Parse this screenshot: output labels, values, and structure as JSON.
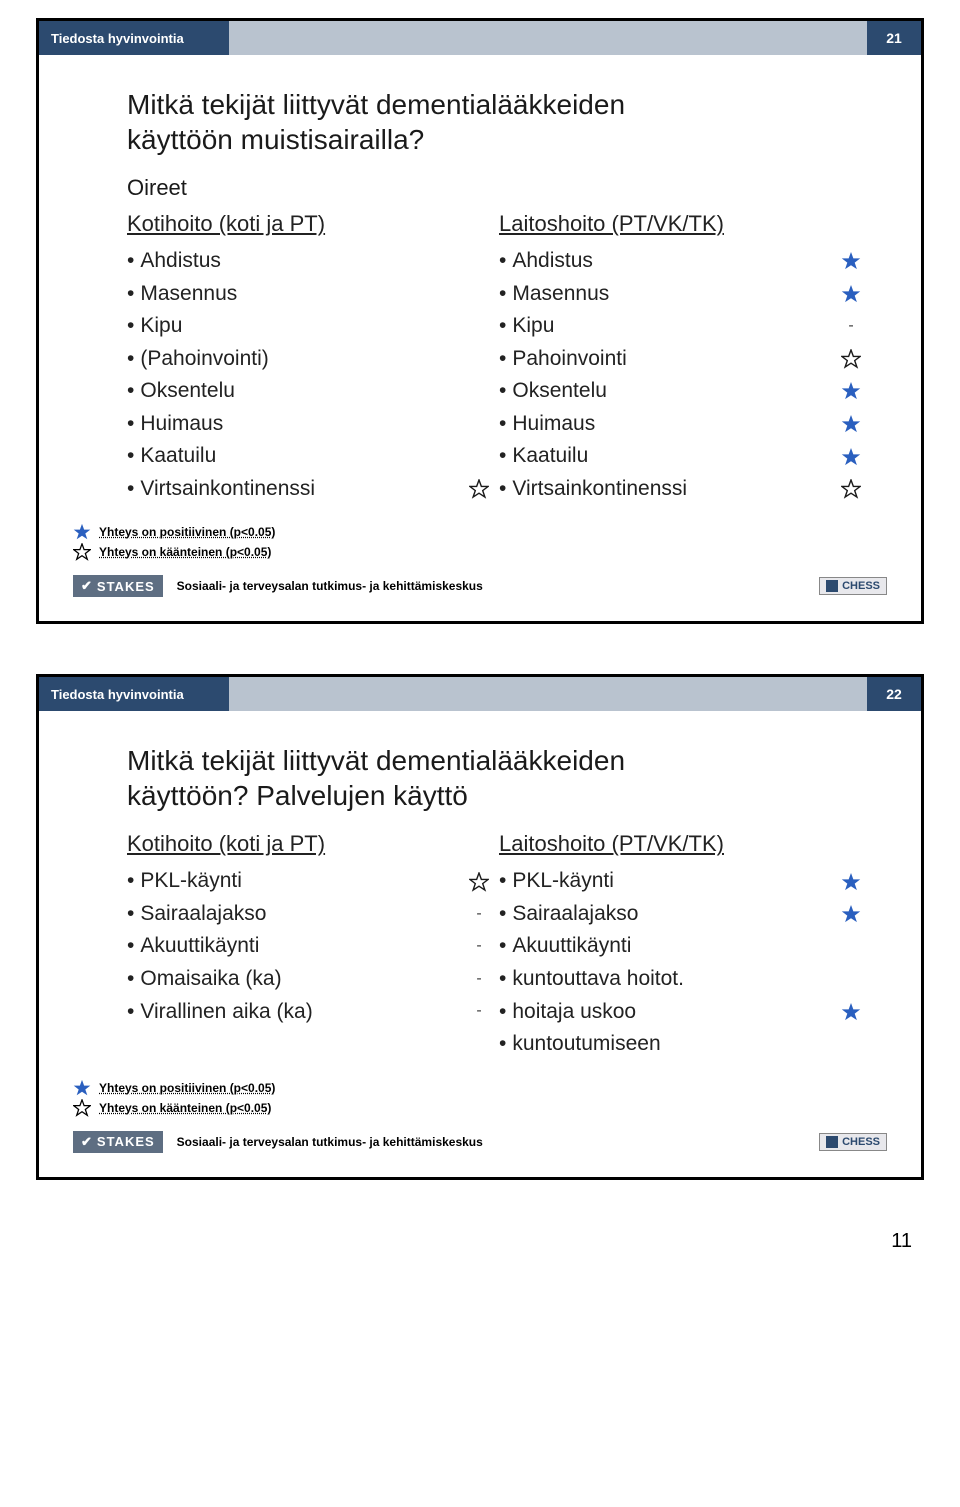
{
  "colors": {
    "header_bg": "#2c4a6f",
    "header_mid": "#b9c3cf",
    "star_filled": "#2a5fbf",
    "star_outline": "#1a1a1a"
  },
  "page_number": "11",
  "slides": [
    {
      "header_left": "Tiedosta hyvinvointia",
      "header_num": "21",
      "title_lines": [
        "Mitkä tekijät liittyvät dementialääkkeiden",
        "käyttöön muistisairailla?"
      ],
      "subtitle": "Oireet",
      "col1_header": "Kotihoito (koti ja PT)",
      "col2_header": "Laitoshoito (PT/VK/TK)",
      "col1": [
        {
          "t": "Ahdistus",
          "m": ""
        },
        {
          "t": "Masennus",
          "m": ""
        },
        {
          "t": "Kipu",
          "m": ""
        },
        {
          "t": "(Pahoinvointi)",
          "m": ""
        },
        {
          "t": "Oksentelu",
          "m": ""
        },
        {
          "t": "Huimaus",
          "m": ""
        },
        {
          "t": "Kaatuilu",
          "m": ""
        },
        {
          "t": "Virtsainkontinenssi",
          "m": "outline"
        }
      ],
      "col2": [
        {
          "t": "Ahdistus",
          "m": "filled"
        },
        {
          "t": "Masennus",
          "m": "filled"
        },
        {
          "t": "Kipu",
          "m": "dash"
        },
        {
          "t": "Pahoinvointi",
          "m": "outline"
        },
        {
          "t": "Oksentelu",
          "m": "filled"
        },
        {
          "t": "Huimaus",
          "m": "filled"
        },
        {
          "t": "Kaatuilu",
          "m": "filled"
        },
        {
          "t": "Virtsainkontinenssi",
          "m": "outline"
        }
      ],
      "legend1": "Yhteys on positiivinen (p<0.05)",
      "legend2": "Yhteys on käänteinen (p<0.05)",
      "footer_text": "Sosiaali- ja terveysalan tutkimus- ja kehittämiskeskus",
      "stakes": "STAKES",
      "chess": "CHESS"
    },
    {
      "header_left": "Tiedosta hyvinvointia",
      "header_num": "22",
      "title_lines": [
        "Mitkä tekijät liittyvät dementialääkkeiden",
        "käyttöön? Palvelujen käyttö"
      ],
      "subtitle": "",
      "col1_header": "Kotihoito (koti ja PT)",
      "col2_header": "Laitoshoito (PT/VK/TK)",
      "col1": [
        {
          "t": "PKL-käynti",
          "m": "outline"
        },
        {
          "t": "Sairaalajakso",
          "m": "dash"
        },
        {
          "t": "Akuuttikäynti",
          "m": "dash"
        },
        {
          "t": "Omaisaika (ka)",
          "m": "dash"
        },
        {
          "t": "Virallinen aika (ka)",
          "m": "dash"
        }
      ],
      "col2": [
        {
          "t": "PKL-käynti",
          "m": "filled"
        },
        {
          "t": "Sairaalajakso",
          "m": "filled"
        },
        {
          "t": "Akuuttikäynti",
          "m": ""
        },
        {
          "t": "kuntouttava hoitot.",
          "m": ""
        },
        {
          "t": "hoitaja uskoo",
          "m": "filled"
        },
        {
          "t": "kuntoutumiseen",
          "m": ""
        }
      ],
      "legend1": "Yhteys on positiivinen (p<0.05)",
      "legend2": "Yhteys on käänteinen (p<0.05)",
      "footer_text": "Sosiaali- ja terveysalan tutkimus- ja kehittämiskeskus",
      "stakes": "STAKES",
      "chess": "CHESS"
    }
  ]
}
